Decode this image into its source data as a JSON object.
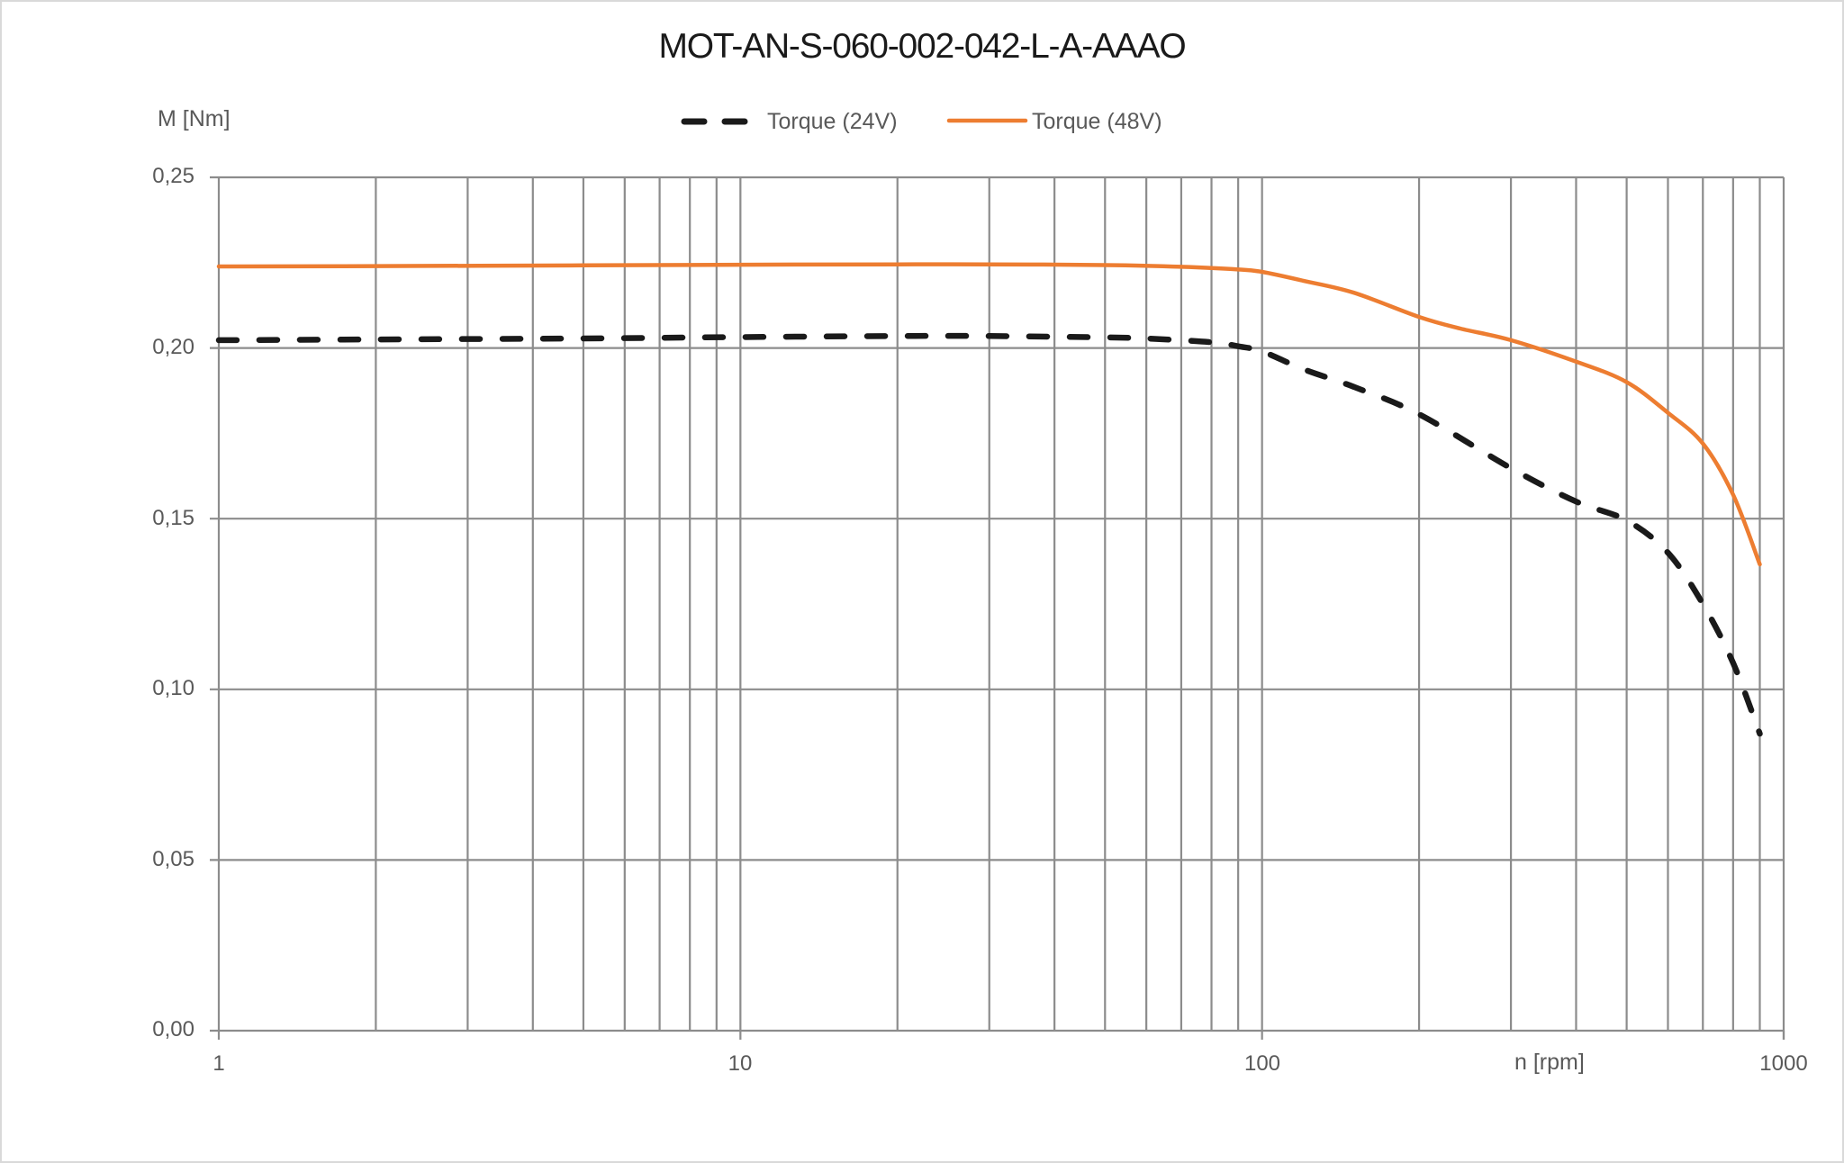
{
  "chart_data": {
    "type": "line",
    "title": "MOT-AN-S-060-002-042-L-A-AAAO",
    "xlabel": "n [rpm]",
    "ylabel": "M [Nm]",
    "xscale": "log",
    "xlim": [
      1,
      1000
    ],
    "ylim": [
      0,
      0.25
    ],
    "x_tick_labels": [
      "1",
      "10",
      "100",
      "1000"
    ],
    "y_tick_labels": [
      "0,00",
      "0,05",
      "0,10",
      "0,15",
      "0,20",
      "0,25"
    ],
    "grid": true,
    "legend_position": "top",
    "series": [
      {
        "name": "Torque (24V)",
        "style": "dashed",
        "color": "#1a1a1a",
        "x": [
          1,
          2,
          5,
          10,
          20,
          30,
          50,
          60,
          80,
          90,
          100,
          120,
          150,
          200,
          300,
          400,
          500,
          600,
          700,
          800,
          900
        ],
        "values": [
          0.2023,
          0.2025,
          0.2028,
          0.2032,
          0.2035,
          0.2035,
          0.2031,
          0.2028,
          0.2017,
          0.2005,
          0.199,
          0.1938,
          0.1886,
          0.1806,
          0.1648,
          0.155,
          0.1495,
          0.14,
          0.125,
          0.1077,
          0.087
        ]
      },
      {
        "name": "Torque (48V)",
        "style": "solid",
        "color": "#ED7D31",
        "x": [
          1,
          2,
          5,
          10,
          20,
          30,
          50,
          70,
          90,
          100,
          120,
          150,
          200,
          240,
          300,
          400,
          500,
          600,
          700,
          800,
          900
        ],
        "values": [
          0.2239,
          0.224,
          0.2242,
          0.2244,
          0.2245,
          0.2245,
          0.2243,
          0.2238,
          0.223,
          0.2223,
          0.2197,
          0.2162,
          0.2091,
          0.2057,
          0.2023,
          0.196,
          0.19,
          0.181,
          0.172,
          0.157,
          0.1366
        ]
      }
    ]
  },
  "legend": {
    "items": [
      {
        "label": "Torque (24V)"
      },
      {
        "label": "Torque (48V)"
      }
    ]
  },
  "colors": {
    "grid": "#8c8c8c",
    "axis_text": "#595959",
    "title_text": "#1a1a1a",
    "series_24v": "#1a1a1a",
    "series_48v": "#ED7D31",
    "frame_border": "#d9d9d9"
  }
}
